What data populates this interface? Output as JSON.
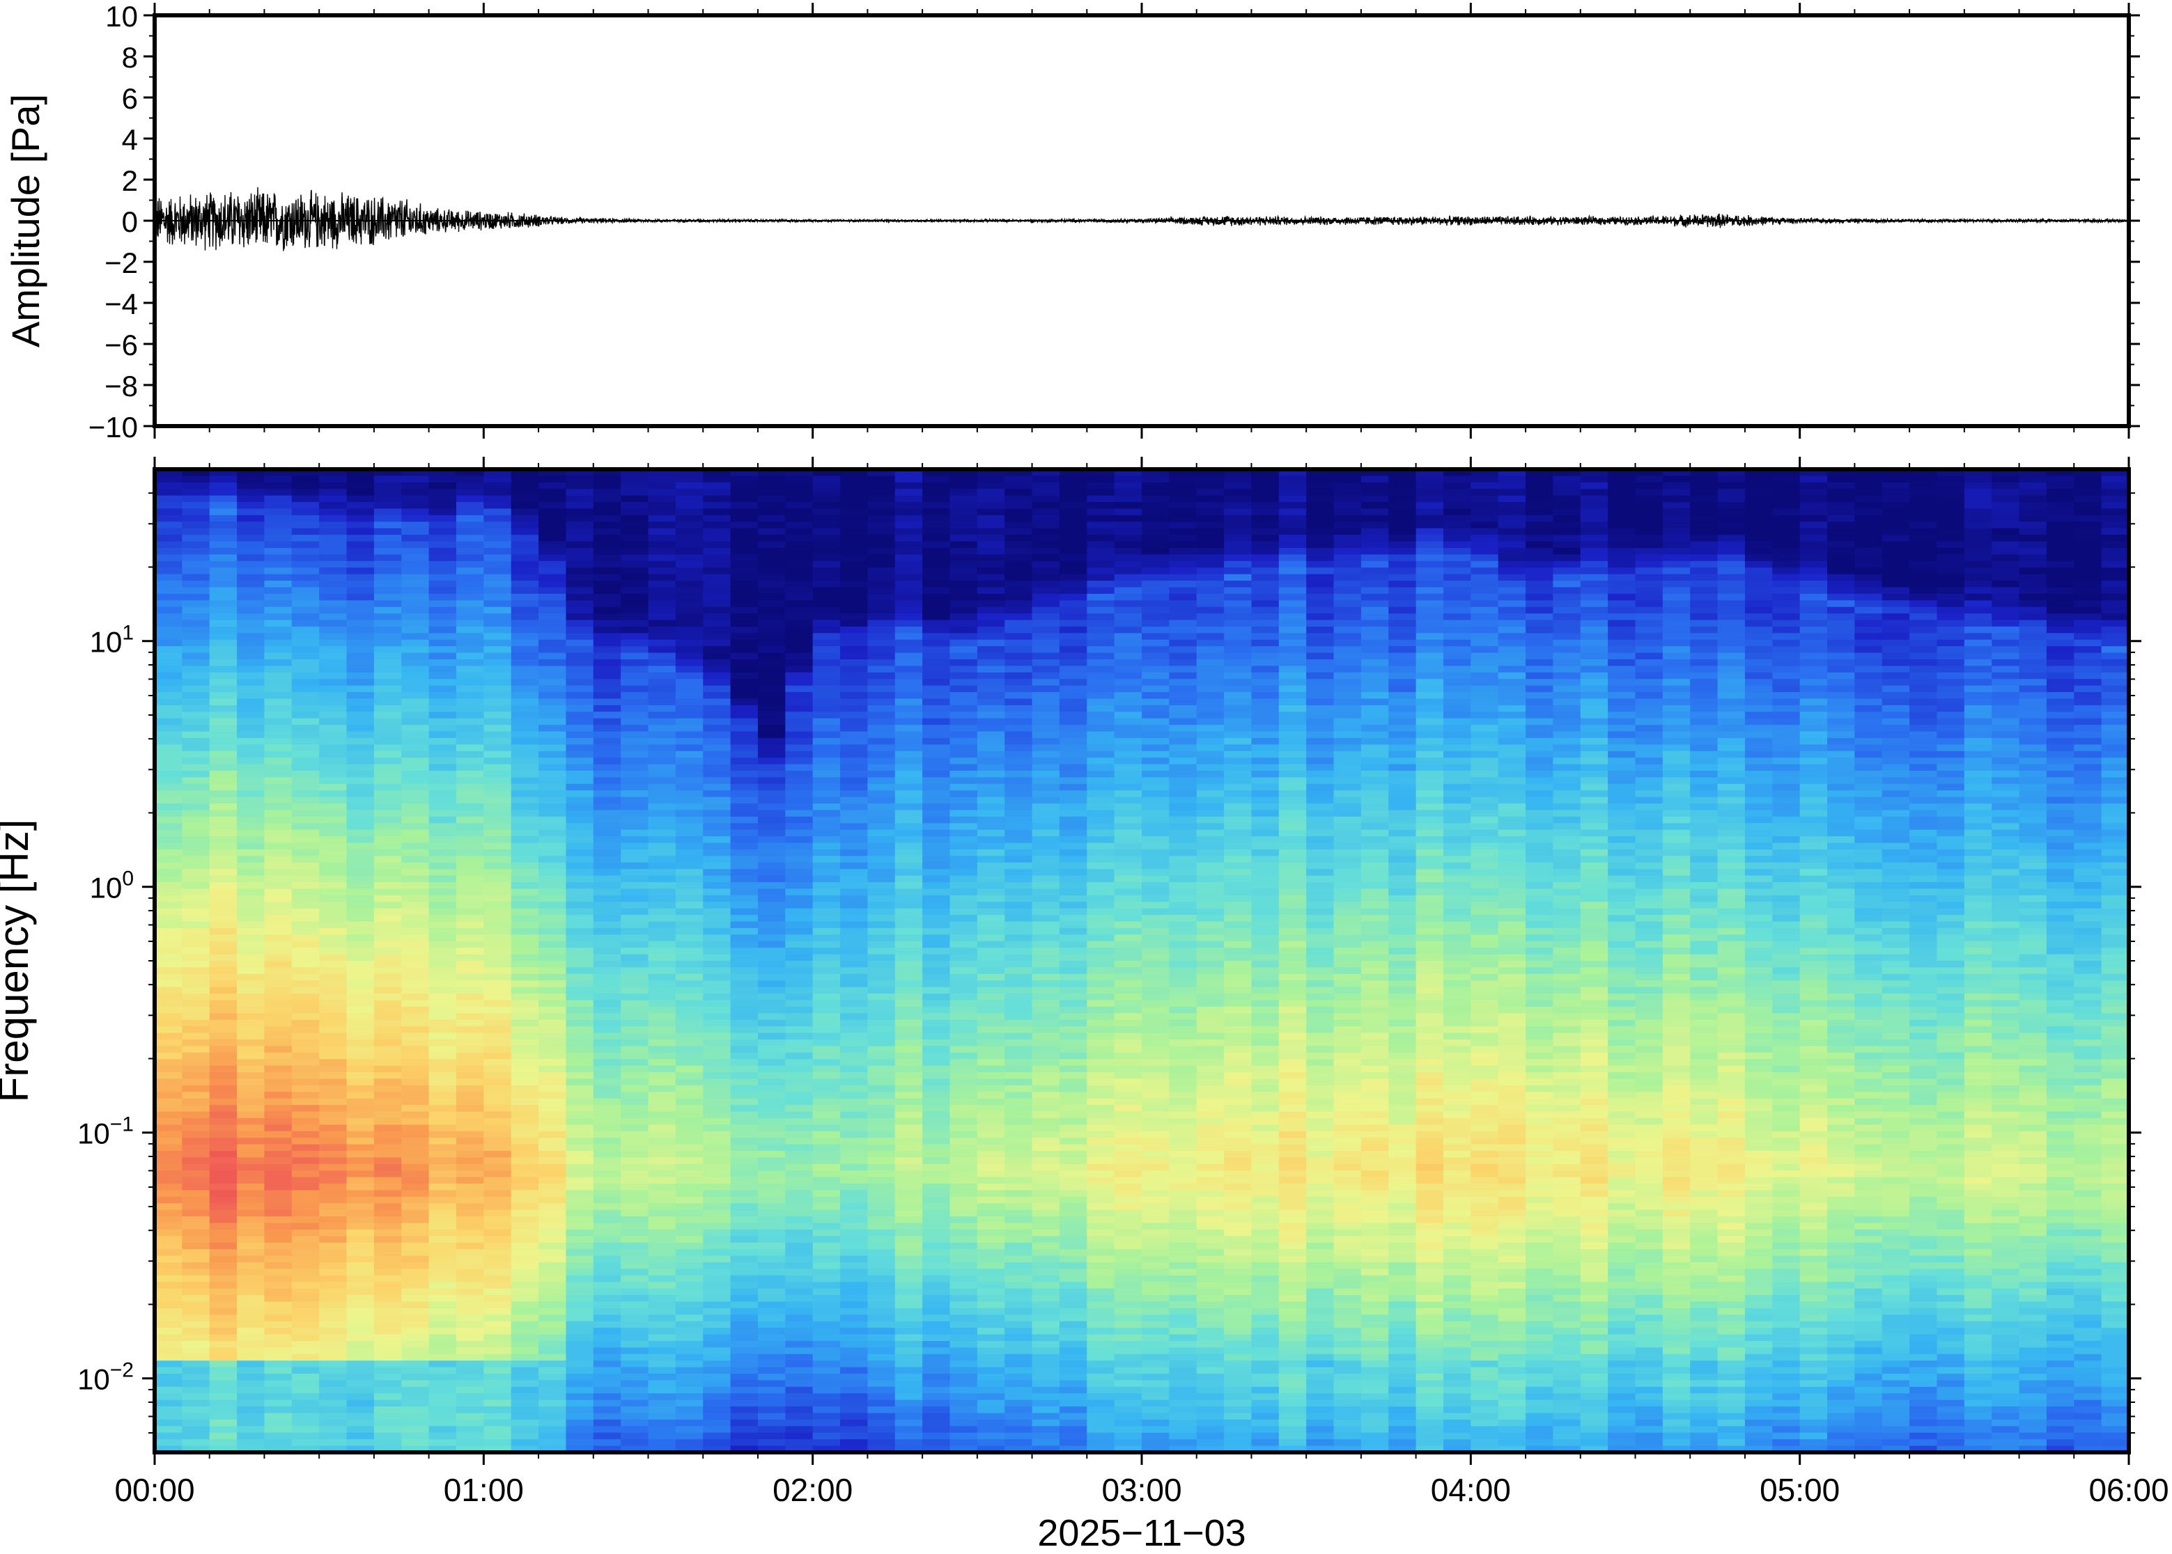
{
  "chart_data": [
    {
      "type": "line",
      "ylabel": "Amplitude [Pa]",
      "ylim": [
        -10,
        10
      ],
      "yticks": [
        "10",
        "8",
        "6",
        "4",
        "2",
        "0",
        "−2",
        "−4",
        "−6",
        "−8",
        "−10"
      ],
      "ytick_values": [
        10,
        8,
        6,
        4,
        2,
        0,
        -2,
        -4,
        -6,
        -8,
        -10
      ],
      "xlim": [
        "00:00",
        "06:00"
      ],
      "grid": false,
      "series": [
        {
          "x_hours": [
            0.0,
            0.25,
            0.5,
            0.75,
            0.85,
            1.0,
            1.1,
            1.25,
            1.5,
            2.0,
            2.5,
            3.0,
            3.25,
            3.5,
            4.0,
            4.5,
            4.75,
            5.0,
            5.5,
            6.0
          ],
          "amplitude_envelope": [
            1.2,
            1.5,
            1.4,
            1.1,
            0.6,
            0.45,
            0.4,
            0.15,
            0.08,
            0.06,
            0.06,
            0.1,
            0.25,
            0.2,
            0.22,
            0.2,
            0.35,
            0.12,
            0.08,
            0.08
          ]
        }
      ]
    },
    {
      "type": "heatmap",
      "ylabel": "Frequency [Hz]",
      "xlabel": "2025−11−03",
      "yscale": "log",
      "ylim": [
        0.005,
        50
      ],
      "yticks": [
        {
          "base": "10",
          "exp": "1",
          "value": 10
        },
        {
          "base": "10",
          "exp": "0",
          "value": 1
        },
        {
          "base": "10",
          "exp": "−1",
          "value": 0.1
        },
        {
          "base": "10",
          "exp": "−2",
          "value": 0.01
        }
      ],
      "xticks": [
        "00:00",
        "01:00",
        "02:00",
        "03:00",
        "04:00",
        "05:00",
        "06:00"
      ],
      "xtick_hours": [
        0,
        1,
        2,
        3,
        4,
        5,
        6
      ],
      "colormap": [
        "#0b0a7a",
        "#1a22c8",
        "#2a6ef0",
        "#37b5f2",
        "#66dfd8",
        "#aaf29a",
        "#ecf58c",
        "#fbd46a",
        "#f99a50",
        "#ef5a55"
      ],
      "time_columns_hours": [
        0.0,
        0.25,
        0.5,
        0.75,
        0.85,
        1.0,
        1.2,
        1.25,
        1.5,
        1.75,
        1.9,
        2.0,
        2.25,
        2.5,
        2.75,
        3.0,
        3.5,
        4.0,
        4.1,
        4.5,
        4.75,
        5.0,
        5.25,
        5.5,
        6.0
      ],
      "spectral_edge_hz": [
        35,
        33,
        30,
        28,
        25,
        32,
        20,
        10,
        8,
        5,
        2.5,
        9,
        10,
        9,
        13,
        16,
        19,
        22,
        16,
        18,
        20,
        15,
        13,
        11,
        9
      ],
      "peak_band_level": [
        0.95,
        0.97,
        0.95,
        0.9,
        0.85,
        0.85,
        0.8,
        0.62,
        0.6,
        0.55,
        0.55,
        0.55,
        0.58,
        0.6,
        0.65,
        0.7,
        0.72,
        0.74,
        0.72,
        0.7,
        0.74,
        0.66,
        0.64,
        0.62,
        0.6
      ],
      "peak_band_hz": 0.07
    }
  ]
}
